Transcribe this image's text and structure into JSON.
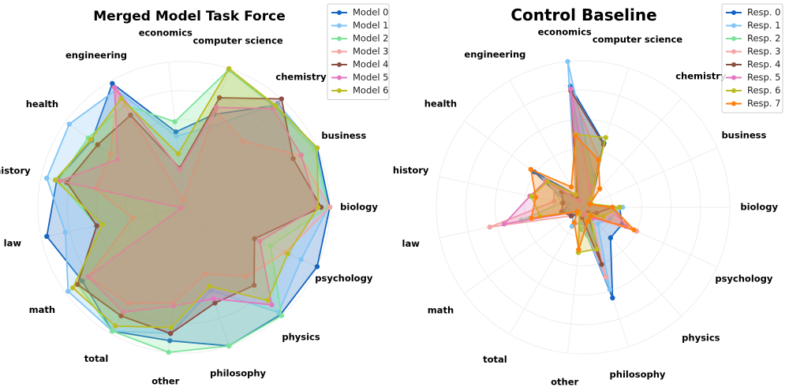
{
  "chart_data": [
    {
      "type": "radar",
      "title": "Merged Model Task Force",
      "categories": [
        "biology",
        "business",
        "chemistry",
        "computer science",
        "economics",
        "engineering",
        "health",
        "history",
        "law",
        "math",
        "total",
        "other",
        "philosophy",
        "physics",
        "psychology"
      ],
      "rlim": [
        0,
        1
      ],
      "grid": true,
      "legend_position": "top-right",
      "series": [
        {
          "name": "Model 0",
          "color": "#1565c0",
          "values": [
            1.0,
            1.0,
            0.94,
            0.67,
            0.52,
            0.98,
            0.78,
            0.89,
            0.96,
            0.86,
            0.98,
            0.92,
            1.0,
            0.99,
            1.0
          ]
        },
        {
          "name": "Model 1",
          "color": "#81c4f5",
          "values": [
            0.99,
            0.99,
            0.96,
            0.58,
            0.49,
            0.93,
            0.97,
            0.96,
            0.83,
            0.98,
            0.98,
            0.87,
            0.6,
            0.97,
            0.88
          ]
        },
        {
          "name": "Model 2",
          "color": "#7de39b",
          "values": [
            0.99,
            0.98,
            0.93,
            0.99,
            0.59,
            0.81,
            0.81,
            0.88,
            0.61,
            0.9,
            0.98,
            1.0,
            1.0,
            1.0,
            0.65
          ]
        },
        {
          "name": "Model 3",
          "color": "#f4a6a6",
          "values": [
            1.0,
            0.87,
            0.61,
            0.7,
            0.05,
            0.92,
            0.62,
            0.62,
            0.36,
            0.81,
            0.76,
            0.66,
            0.48,
            0.64,
            0.76
          ]
        },
        {
          "name": "Model 4",
          "color": "#8b4f43",
          "values": [
            0.94,
            0.82,
            1.0,
            0.79,
            0.27,
            0.73,
            0.73,
            0.82,
            0.61,
            0.9,
            0.86,
            0.87,
            0.69,
            0.72,
            0.53
          ]
        },
        {
          "name": "Model 5",
          "color": "#e377c2",
          "values": [
            0.91,
            0.88,
            0.91,
            0.72,
            0.26,
            0.95,
            0.56,
            0.87,
            0.02,
            0.81,
            0.83,
            0.68,
            0.66,
            0.9,
            0.57
          ]
        },
        {
          "name": "Model 6",
          "color": "#bcbd22",
          "values": [
            0.92,
            1.0,
            0.94,
            1.0,
            0.37,
            0.86,
            0.79,
            0.9,
            0.57,
            0.94,
            0.94,
            0.83,
            0.57,
            0.86,
            0.78
          ]
        }
      ]
    },
    {
      "type": "radar",
      "title": "Control Baseline",
      "categories": [
        "biology",
        "business",
        "chemistry",
        "computer science",
        "economics",
        "engineering",
        "health",
        "history",
        "law",
        "math",
        "total",
        "other",
        "philosophy",
        "physics",
        "psychology"
      ],
      "rlim": [
        0,
        1
      ],
      "grid": true,
      "legend_position": "top-right",
      "series": [
        {
          "name": "Resp. 0",
          "color": "#1565c0",
          "values": [
            0.25,
            0.05,
            0.1,
            0.46,
            0.83,
            0.1,
            0.41,
            0.1,
            0.14,
            0.08,
            0.05,
            0.1,
            0.65,
            0.28,
            0.29
          ]
        },
        {
          "name": "Resp. 1",
          "color": "#81c4f5",
          "values": [
            0.27,
            0.05,
            0.07,
            0.23,
            1.0,
            0.1,
            0.32,
            0.1,
            0.1,
            0.08,
            0.15,
            0.1,
            0.59,
            0.15,
            0.2
          ]
        },
        {
          "name": "Resp. 2",
          "color": "#7de39b",
          "values": [
            0.25,
            0.05,
            0.05,
            0.2,
            0.65,
            0.1,
            0.3,
            0.15,
            0.43,
            0.05,
            0.05,
            0.15,
            0.3,
            0.1,
            0.15
          ]
        },
        {
          "name": "Resp. 3",
          "color": "#f4a6a6",
          "values": [
            0.15,
            0.05,
            0.1,
            0.35,
            0.8,
            0.1,
            0.25,
            0.2,
            0.65,
            0.1,
            0.05,
            0.08,
            0.5,
            0.1,
            0.4
          ]
        },
        {
          "name": "Resp. 4",
          "color": "#8b4f43",
          "values": [
            0.2,
            0.05,
            0.08,
            0.45,
            0.8,
            0.08,
            0.18,
            0.14,
            0.15,
            0.1,
            0.05,
            0.07,
            0.41,
            0.05,
            0.1
          ]
        },
        {
          "name": "Resp. 5",
          "color": "#e377c2",
          "values": [
            0.2,
            0.05,
            0.07,
            0.15,
            0.81,
            0.05,
            0.31,
            0.37,
            0.55,
            0.05,
            0.05,
            0.05,
            0.05,
            0.1,
            0.32
          ]
        },
        {
          "name": "Resp. 6",
          "color": "#bcbd22",
          "values": [
            0.25,
            0.06,
            0.08,
            0.5,
            0.5,
            0.1,
            0.3,
            0.36,
            0.3,
            0.05,
            0.05,
            0.31,
            0.3,
            0.07,
            0.15
          ]
        },
        {
          "name": "Resp. 7",
          "color": "#ff7f0e",
          "values": [
            0.2,
            0.05,
            0.17,
            0.34,
            0.49,
            0.16,
            0.44,
            0.33,
            0.36,
            0.05,
            0.12,
            0.29,
            0.1,
            0.08,
            0.38
          ]
        }
      ]
    }
  ]
}
